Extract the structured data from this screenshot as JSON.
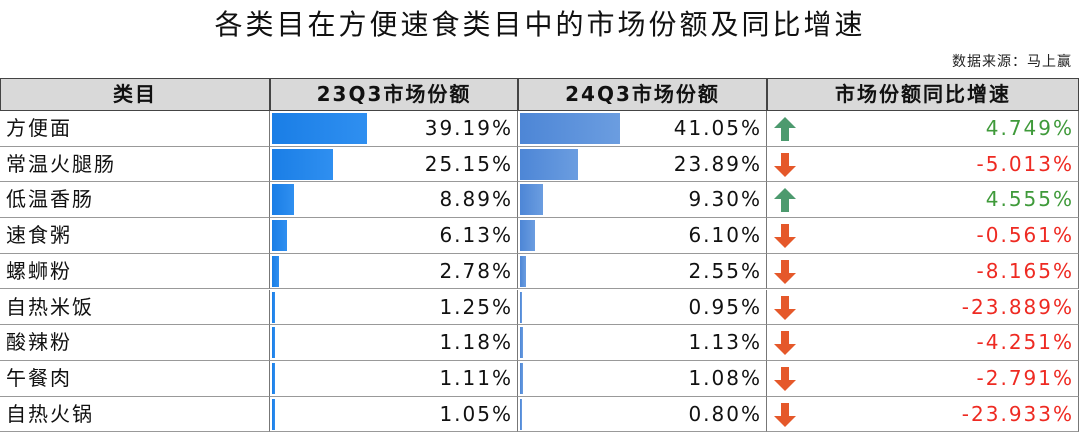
{
  "header": {
    "title": "各类目在方便速食类目中的市场份额及同比增速",
    "source": "数据来源：马上赢"
  },
  "table": {
    "columns": [
      "类目",
      "23Q3市场份额",
      "24Q3市场份额",
      "市场份额同比增速"
    ],
    "rows": [
      {
        "category": "方便面",
        "share_23q3": {
          "value": 39.19,
          "label": "39.19%"
        },
        "share_24q3": {
          "value": 41.05,
          "label": "41.05%"
        },
        "yoy": {
          "value": 4.749,
          "label": "4.749%"
        }
      },
      {
        "category": "常温火腿肠",
        "share_23q3": {
          "value": 25.15,
          "label": "25.15%"
        },
        "share_24q3": {
          "value": 23.89,
          "label": "23.89%"
        },
        "yoy": {
          "value": -5.013,
          "label": "-5.013%"
        }
      },
      {
        "category": "低温香肠",
        "share_23q3": {
          "value": 8.89,
          "label": "8.89%"
        },
        "share_24q3": {
          "value": 9.3,
          "label": "9.30%"
        },
        "yoy": {
          "value": 4.555,
          "label": "4.555%"
        }
      },
      {
        "category": "速食粥",
        "share_23q3": {
          "value": 6.13,
          "label": "6.13%"
        },
        "share_24q3": {
          "value": 6.1,
          "label": "6.10%"
        },
        "yoy": {
          "value": -0.561,
          "label": "-0.561%"
        }
      },
      {
        "category": "螺蛳粉",
        "share_23q3": {
          "value": 2.78,
          "label": "2.78%"
        },
        "share_24q3": {
          "value": 2.55,
          "label": "2.55%"
        },
        "yoy": {
          "value": -8.165,
          "label": "-8.165%"
        }
      },
      {
        "category": "自热米饭",
        "share_23q3": {
          "value": 1.25,
          "label": "1.25%"
        },
        "share_24q3": {
          "value": 0.95,
          "label": "0.95%"
        },
        "yoy": {
          "value": -23.889,
          "label": "-23.889%"
        }
      },
      {
        "category": "酸辣粉",
        "share_23q3": {
          "value": 1.18,
          "label": "1.18%"
        },
        "share_24q3": {
          "value": 1.13,
          "label": "1.13%"
        },
        "yoy": {
          "value": -4.251,
          "label": "-4.251%"
        }
      },
      {
        "category": "午餐肉",
        "share_23q3": {
          "value": 1.11,
          "label": "1.11%"
        },
        "share_24q3": {
          "value": 1.08,
          "label": "1.08%"
        },
        "yoy": {
          "value": -2.791,
          "label": "-2.791%"
        }
      },
      {
        "category": "自热火锅",
        "share_23q3": {
          "value": 1.05,
          "label": "1.05%"
        },
        "share_24q3": {
          "value": 0.8,
          "label": "0.80%"
        },
        "yoy": {
          "value": -23.933,
          "label": "-23.933%"
        }
      }
    ]
  }
}
